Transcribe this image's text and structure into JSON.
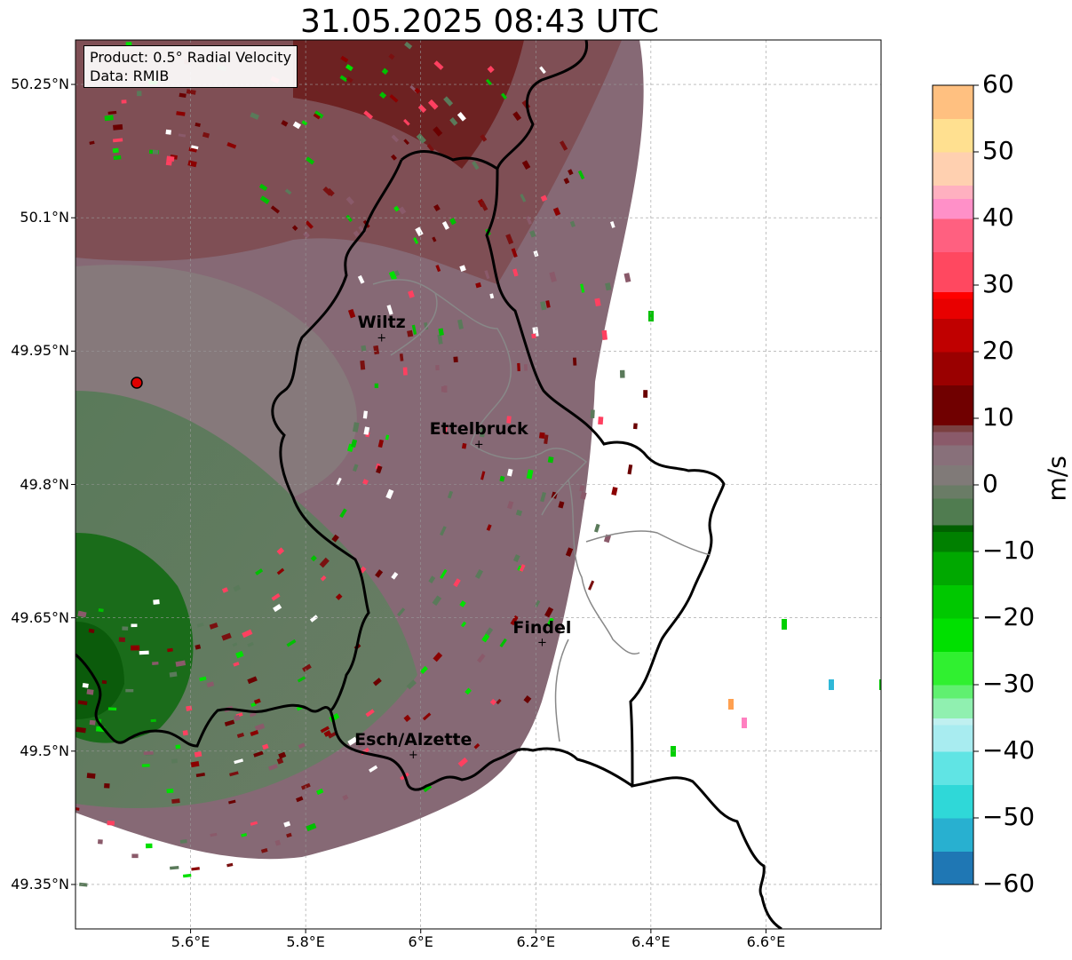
{
  "title": "31.05.2025 08:43 UTC",
  "info": {
    "product": "Product: 0.5° Radial Velocity",
    "data": "Data: RMIB"
  },
  "map": {
    "lon_range": [
      5.4,
      6.8
    ],
    "lat_range": [
      49.3,
      50.3
    ],
    "grid": true,
    "radar_site": {
      "lon": 5.505,
      "lat": 49.914
    },
    "x_ticks": [
      "5.6°E",
      "5.8°E",
      "6°E",
      "6.2°E",
      "6.4°E",
      "6.6°E"
    ],
    "x_tick_values": [
      5.6,
      5.8,
      6.0,
      6.2,
      6.4,
      6.6
    ],
    "y_ticks": [
      "50.25°N",
      "50.1°N",
      "49.95°N",
      "49.8°N",
      "49.65°N",
      "49.5°N",
      "49.35°N"
    ],
    "y_tick_values": [
      50.25,
      50.1,
      49.95,
      49.8,
      49.65,
      49.5,
      49.35
    ],
    "cities": [
      {
        "name": "Wiltz",
        "lon": 5.932,
        "lat": 49.966
      },
      {
        "name": "Ettelbruck",
        "lon": 6.101,
        "lat": 49.846
      },
      {
        "name": "Findel",
        "lon": 6.211,
        "lat": 49.623
      },
      {
        "name": "Esch/Alzette",
        "lon": 5.987,
        "lat": 49.497
      }
    ]
  },
  "colorbar": {
    "unit": "m/s",
    "range": [
      -60,
      60
    ],
    "ticks": [
      "60",
      "50",
      "40",
      "30",
      "20",
      "10",
      "0",
      "−10",
      "−20",
      "−30",
      "−40",
      "−50",
      "−60"
    ],
    "tick_values": [
      60,
      50,
      40,
      30,
      20,
      10,
      0,
      -10,
      -20,
      -30,
      -40,
      -50,
      -60
    ],
    "colors": {
      "fast_inbound": "#1f77b4",
      "inbound_cyan": "#2fd8d8",
      "inbound_green": "#00dd00",
      "inbound_dark_green": "#006600",
      "near_zero_green": "#5a7d5a",
      "near_zero_gray": "#887a7a",
      "near_zero_mauve": "#8a5a6a",
      "outbound_dark_red": "#7a0000",
      "outbound_red": "#ff0000",
      "outbound_pink": "#ff80c0",
      "outbound_orange": "#ff9a50"
    }
  }
}
